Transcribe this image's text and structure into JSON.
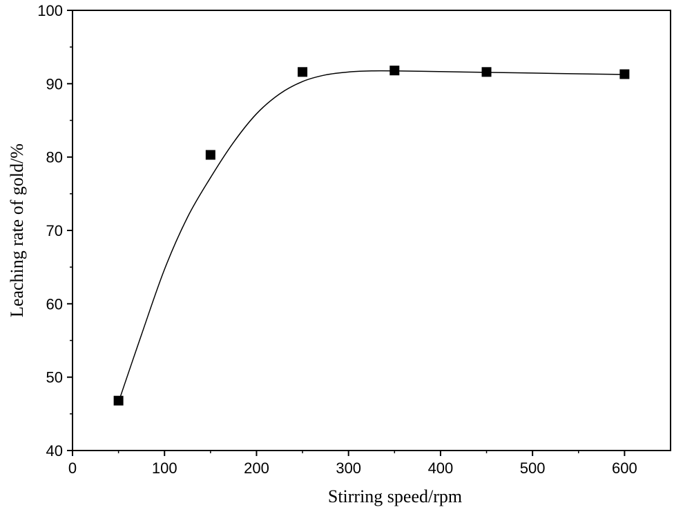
{
  "chart_data": {
    "type": "scatter",
    "xlabel": "Stirring speed/rpm",
    "ylabel": "Leaching rate of gold/%",
    "xlim": [
      0,
      650
    ],
    "ylim": [
      40,
      100
    ],
    "x_ticks": [
      0,
      100,
      200,
      300,
      400,
      500,
      600
    ],
    "y_ticks": [
      40,
      50,
      60,
      70,
      80,
      90,
      100
    ],
    "grid": false,
    "marker": "square",
    "series": [
      {
        "x": [
          50,
          150,
          250,
          350,
          450,
          600
        ],
        "y": [
          46.8,
          80.3,
          91.6,
          91.8,
          91.6,
          91.3
        ]
      }
    ],
    "fit_curve": {
      "x": [
        50,
        75,
        100,
        125,
        150,
        175,
        200,
        225,
        250,
        275,
        300,
        325,
        350,
        400,
        450,
        500,
        550,
        600
      ],
      "y": [
        46.6,
        55.8,
        64.7,
        71.8,
        77.2,
        82.0,
        85.9,
        88.6,
        90.3,
        91.2,
        91.6,
        91.75,
        91.75,
        91.65,
        91.55,
        91.45,
        91.35,
        91.25
      ]
    },
    "colors": {
      "axis": "#000000",
      "marker": "#000000",
      "curve": "#000000",
      "background": "#ffffff"
    }
  }
}
